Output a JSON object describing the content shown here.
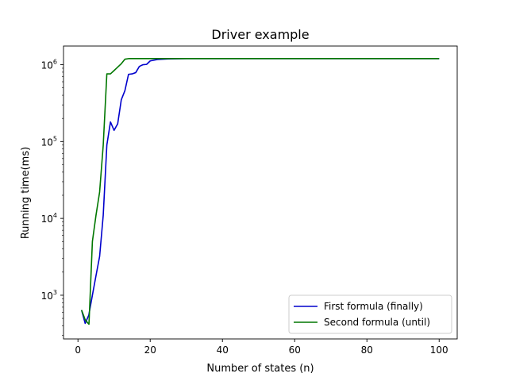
{
  "chart_data": {
    "type": "line",
    "title": "Driver example",
    "xlabel": "Number of states (n)",
    "ylabel": "Running time(ms)",
    "xscale": "linear",
    "yscale": "log",
    "xlim": [
      -4,
      105
    ],
    "ylim": [
      270,
      1750000
    ],
    "grid": false,
    "legend_position": "lower-right",
    "x_ticks": [
      {
        "value": 0,
        "label": "0"
      },
      {
        "value": 20,
        "label": "20"
      },
      {
        "value": 40,
        "label": "40"
      },
      {
        "value": 60,
        "label": "60"
      },
      {
        "value": 80,
        "label": "80"
      },
      {
        "value": 100,
        "label": "100"
      }
    ],
    "y_ticks": [
      {
        "value": 1000,
        "base": "10",
        "exp": "3"
      },
      {
        "value": 10000,
        "base": "10",
        "exp": "4"
      },
      {
        "value": 100000,
        "base": "10",
        "exp": "5"
      },
      {
        "value": 1000000,
        "base": "10",
        "exp": "6"
      }
    ],
    "series": [
      {
        "name": "First formula (finally)",
        "color": "#0000cc",
        "x": [
          1,
          2,
          3,
          4,
          5,
          6,
          7,
          8,
          9,
          10,
          11,
          12,
          13,
          14,
          15,
          16,
          17,
          18,
          19,
          20,
          22,
          25,
          30,
          40,
          50,
          60,
          70,
          80,
          90,
          100
        ],
        "y": [
          640,
          430,
          550,
          1000,
          1800,
          3200,
          11000,
          90000,
          180000,
          140000,
          170000,
          350000,
          460000,
          750000,
          760000,
          790000,
          950000,
          1000000,
          1010000,
          1120000,
          1170000,
          1190000,
          1200000,
          1200000,
          1200000,
          1200000,
          1200000,
          1200000,
          1200000,
          1200000
        ]
      },
      {
        "name": "Second formula (until)",
        "color": "#007700",
        "x": [
          1,
          2,
          3,
          3.05,
          4,
          5,
          6,
          7,
          8,
          9,
          10,
          11,
          12,
          13,
          14,
          15,
          16,
          18,
          20,
          25,
          30,
          40,
          50,
          60,
          70,
          80,
          90,
          100
        ],
        "y": [
          640,
          480,
          420,
          420,
          5000,
          11000,
          22000,
          90000,
          760000,
          760000,
          840000,
          930000,
          1030000,
          1180000,
          1200000,
          1200000,
          1200000,
          1200000,
          1200000,
          1200000,
          1200000,
          1200000,
          1200000,
          1200000,
          1200000,
          1200000,
          1200000,
          1200000
        ]
      }
    ]
  }
}
